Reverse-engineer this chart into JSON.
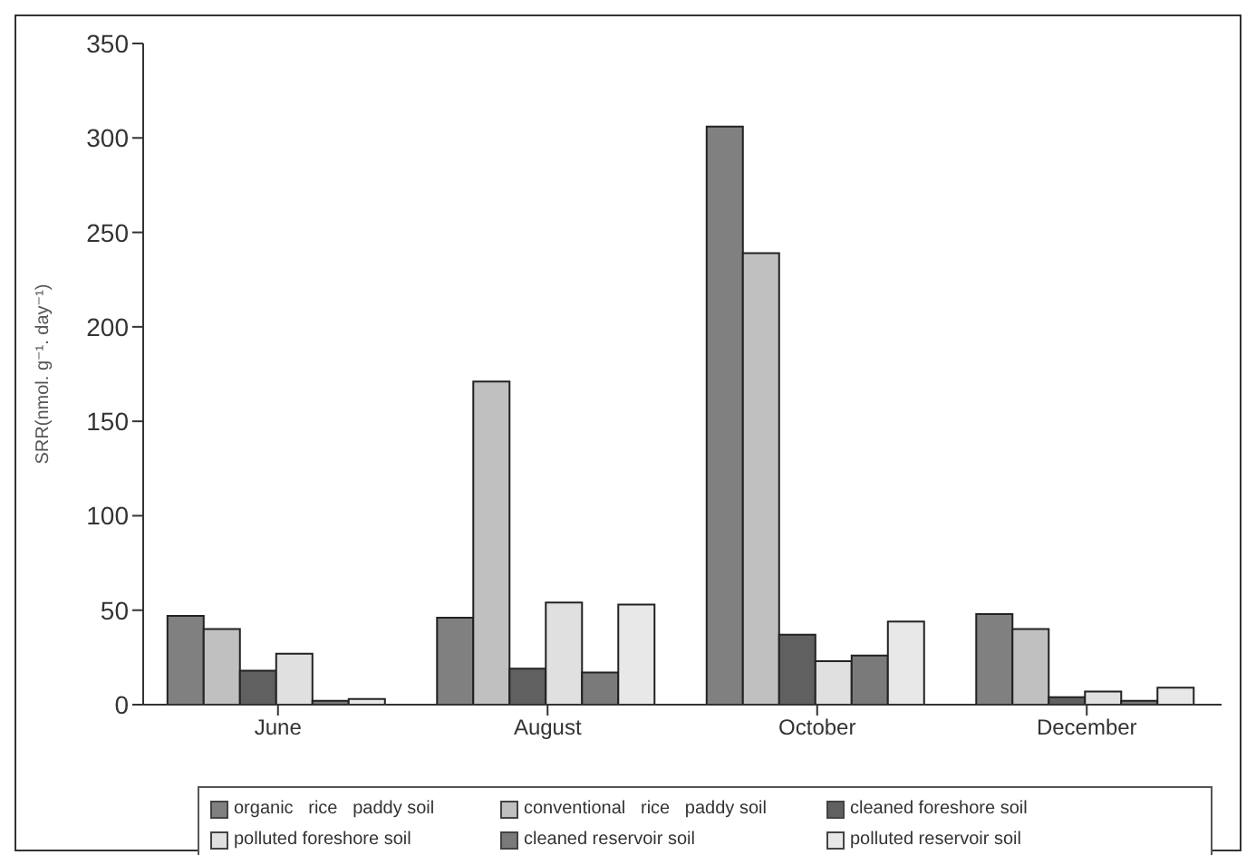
{
  "chart_data": {
    "type": "bar",
    "ylabel": "SRR(nmol. g⁻¹. day⁻¹)",
    "categories": [
      "June",
      "August",
      "October",
      "December"
    ],
    "series": [
      {
        "name": "organic   rice   paddy soil",
        "color": "#808080",
        "values": [
          47,
          46,
          306,
          48
        ]
      },
      {
        "name": "conventional   rice   paddy soil",
        "color": "#c0c0c0",
        "values": [
          40,
          171,
          239,
          40
        ]
      },
      {
        "name": "cleaned foreshore soil",
        "color": "#606060",
        "values": [
          18,
          19,
          37,
          4
        ]
      },
      {
        "name": "polluted foreshore soil",
        "color": "#e0e0e0",
        "values": [
          27,
          54,
          23,
          7
        ]
      },
      {
        "name": "cleaned reservoir soil",
        "color": "#7a7a7a",
        "values": [
          2,
          17,
          26,
          2
        ]
      },
      {
        "name": "polluted reservoir soil",
        "color": "#e8e8e8",
        "values": [
          3,
          53,
          44,
          9
        ]
      }
    ],
    "ylim": [
      0,
      350
    ],
    "yticks": [
      0,
      50,
      100,
      150,
      200,
      250,
      300,
      350
    ],
    "grid": false,
    "legend": "bottom"
  }
}
